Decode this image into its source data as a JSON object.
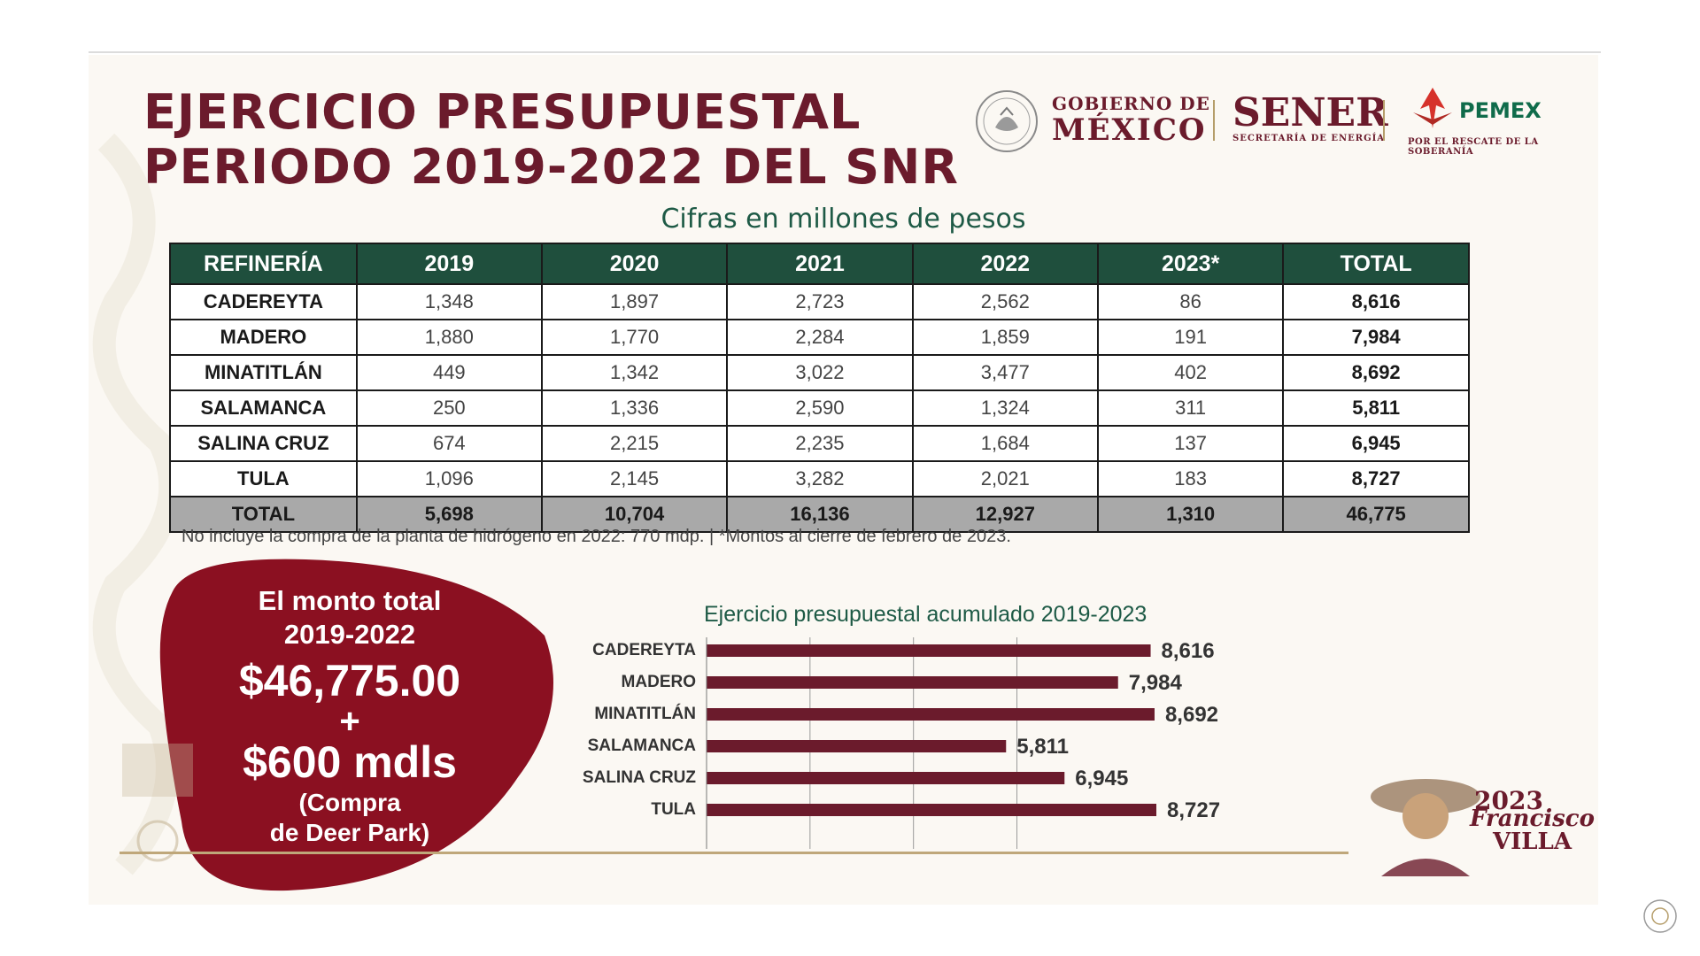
{
  "title": {
    "line1": "EJERCICIO PRESUPUESTAL",
    "line2": "PERIODO 2019-2022 DEL SNR"
  },
  "logos": {
    "gobierno_line1": "GOBIERNO DE",
    "gobierno_line2": "MÉXICO",
    "sener": "SENER",
    "sener_tag": "SECRETARÍA DE ENERGÍA",
    "pemex": "PEMEX",
    "pemex_tag": "POR EL RESCATE DE LA SOBERANÍA"
  },
  "subtitle": "Cifras en millones de pesos",
  "table": {
    "headers": [
      "REFINERÍA",
      "2019",
      "2020",
      "2021",
      "2022",
      "2023*",
      "TOTAL"
    ],
    "rows": [
      [
        "CADEREYTA",
        "1,348",
        "1,897",
        "2,723",
        "2,562",
        "86",
        "8,616"
      ],
      [
        "MADERO",
        "1,880",
        "1,770",
        "2,284",
        "1,859",
        "191",
        "7,984"
      ],
      [
        "MINATITLÁN",
        "449",
        "1,342",
        "3,022",
        "3,477",
        "402",
        "8,692"
      ],
      [
        "SALAMANCA",
        "250",
        "1,336",
        "2,590",
        "1,324",
        "311",
        "5,811"
      ],
      [
        "SALINA CRUZ",
        "674",
        "2,215",
        "2,235",
        "1,684",
        "137",
        "6,945"
      ],
      [
        "TULA",
        "1,096",
        "2,145",
        "3,282",
        "2,021",
        "183",
        "8,727"
      ]
    ],
    "total_row": [
      "TOTAL",
      "5,698",
      "10,704",
      "16,136",
      "12,927",
      "1,310",
      "46,775"
    ]
  },
  "note": "No incluye la compra de la planta de hidrógeno en 2022: 770 mdp. | *Montos al cierre de febrero de 2023.",
  "callout": {
    "line1": "El monto total",
    "line2": "2019-2022",
    "amount": "$46,775.00",
    "plus": "+",
    "amount2": "$600 mdls",
    "paren1": "(Compra",
    "paren2": "de Deer Park)"
  },
  "chart_data": {
    "type": "bar",
    "orientation": "horizontal",
    "title": "Ejercicio presupuestal acumulado 2019-2023",
    "categories": [
      "CADEREYTA",
      "MADERO",
      "MINATITLÁN",
      "SALAMANCA",
      "SALINA CRUZ",
      "TULA"
    ],
    "values": [
      8616,
      7984,
      8692,
      5811,
      6945,
      8727
    ],
    "value_labels": [
      "8,616",
      "7,984",
      "8,692",
      "5,811",
      "6,945",
      "8,727"
    ],
    "xlim": [
      0,
      8727
    ],
    "grid": true,
    "bar_color": "#6b1b2c"
  },
  "villa": {
    "year": "2023",
    "name_line1": "Francisco",
    "name_line2": "VILLA"
  },
  "colors": {
    "maroon": "#6b1b2c",
    "green": "#1f4f3d",
    "gold": "#bfa77a",
    "blob": "#8b1021"
  }
}
